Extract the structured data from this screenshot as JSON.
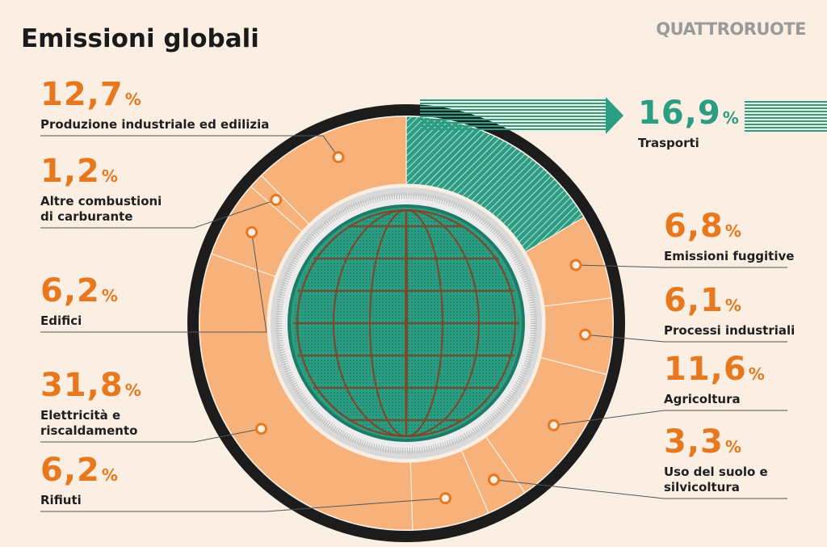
{
  "brand": "QUATTRORUOTE",
  "chart_data": {
    "type": "donut",
    "title": "Emissioni globali",
    "categories": [
      "Trasporti",
      "Emissioni fuggitive",
      "Processi industriali",
      "Agricoltura",
      "Uso del suolo e silvicoltura",
      "Rifiuti",
      "Elettricità e riscaldamento",
      "Edifici",
      "Altre combustioni di carburante",
      "Produzione industriale ed edilizia"
    ],
    "values": [
      16.9,
      6.8,
      6.1,
      11.6,
      3.3,
      6.2,
      31.8,
      6.2,
      1.2,
      12.7
    ],
    "value_labels": [
      "16,9",
      "6,8",
      "6,1",
      "11,6",
      "3,3",
      "6,2",
      "31,8",
      "6,2",
      "1,2",
      "12,7"
    ],
    "value_suffix": "%",
    "colors": [
      "#2a9d82",
      "#f6b27a",
      "#f6b27a",
      "#f6b27a",
      "#f6b27a",
      "#f6b27a",
      "#f6b27a",
      "#f6b27a",
      "#f6b27a",
      "#f6b27a"
    ]
  }
}
